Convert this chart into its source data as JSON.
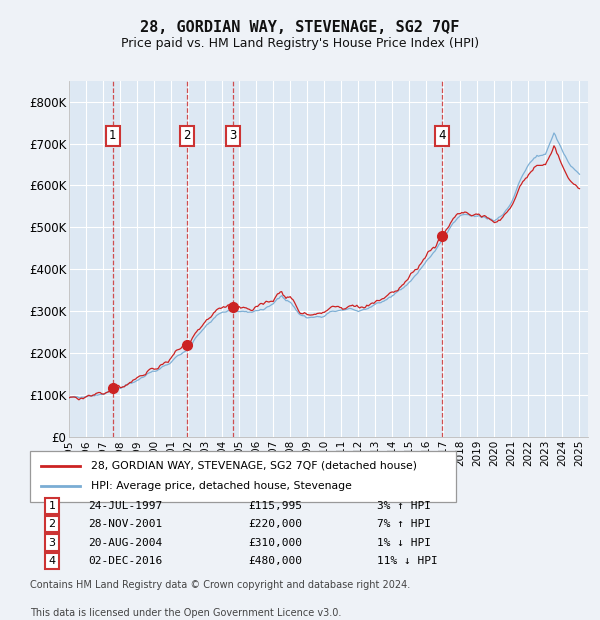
{
  "title": "28, GORDIAN WAY, STEVENAGE, SG2 7QF",
  "subtitle": "Price paid vs. HM Land Registry's House Price Index (HPI)",
  "legend_line1": "28, GORDIAN WAY, STEVENAGE, SG2 7QF (detached house)",
  "legend_line2": "HPI: Average price, detached house, Stevenage",
  "footer_line1": "Contains HM Land Registry data © Crown copyright and database right 2024.",
  "footer_line2": "This data is licensed under the Open Government Licence v3.0.",
  "transactions": [
    {
      "label": "1",
      "date": "24-JUL-1997",
      "price_str": "£115,995",
      "year": 1997.56,
      "price": 115995,
      "pct_str": "3% ↑ HPI"
    },
    {
      "label": "2",
      "date": "28-NOV-2001",
      "price_str": "£220,000",
      "year": 2001.91,
      "price": 220000,
      "pct_str": "7% ↑ HPI"
    },
    {
      "label": "3",
      "date": "20-AUG-2004",
      "price_str": "£310,000",
      "year": 2004.63,
      "price": 310000,
      "pct_str": "1% ↓ HPI"
    },
    {
      "label": "4",
      "date": "02-DEC-2016",
      "price_str": "£480,000",
      "year": 2016.92,
      "price": 480000,
      "pct_str": "11% ↓ HPI"
    }
  ],
  "hpi_color": "#7aadd4",
  "price_color": "#cc2222",
  "vline_color": "#cc3333",
  "plot_bg": "#dde8f3",
  "fig_bg": "#eef2f7",
  "grid_color": "#ffffff",
  "ylim": [
    0,
    850000
  ],
  "xlim_start": 1995.0,
  "xlim_end": 2025.5,
  "yticks": [
    0,
    100000,
    200000,
    300000,
    400000,
    500000,
    600000,
    700000,
    800000
  ],
  "ytick_labels": [
    "£0",
    "£100K",
    "£200K",
    "£300K",
    "£400K",
    "£500K",
    "£600K",
    "£700K",
    "£800K"
  ],
  "xtick_years": [
    1995,
    1996,
    1997,
    1998,
    1999,
    2000,
    2001,
    2002,
    2003,
    2004,
    2005,
    2006,
    2007,
    2008,
    2009,
    2010,
    2011,
    2012,
    2013,
    2014,
    2015,
    2016,
    2017,
    2018,
    2019,
    2020,
    2021,
    2022,
    2023,
    2024,
    2025
  ],
  "hpi_anchor_t": [
    1995.0,
    1995.5,
    1996.0,
    1996.5,
    1997.0,
    1997.5,
    1998.0,
    1998.5,
    1999.0,
    1999.5,
    2000.0,
    2000.5,
    2001.0,
    2001.5,
    2002.0,
    2002.5,
    2003.0,
    2003.5,
    2004.0,
    2004.5,
    2005.0,
    2005.5,
    2006.0,
    2006.5,
    2007.0,
    2007.5,
    2008.0,
    2008.5,
    2009.0,
    2009.5,
    2010.0,
    2010.5,
    2011.0,
    2011.5,
    2012.0,
    2012.5,
    2013.0,
    2013.5,
    2014.0,
    2014.5,
    2015.0,
    2015.5,
    2016.0,
    2016.5,
    2017.0,
    2017.5,
    2018.0,
    2018.5,
    2019.0,
    2019.5,
    2020.0,
    2020.5,
    2021.0,
    2021.5,
    2022.0,
    2022.5,
    2023.0,
    2023.5,
    2024.0,
    2024.5,
    2025.0
  ],
  "hpi_anchor_v": [
    92000,
    94000,
    97000,
    100000,
    104000,
    111000,
    118000,
    126000,
    136000,
    146000,
    155000,
    167000,
    180000,
    196000,
    212000,
    238000,
    260000,
    280000,
    294000,
    302000,
    297000,
    295000,
    300000,
    308000,
    320000,
    338000,
    322000,
    294000,
    284000,
    287000,
    293000,
    301000,
    307000,
    304000,
    301000,
    307000,
    314000,
    323000,
    336000,
    352000,
    370000,
    392000,
    420000,
    444000,
    472000,
    504000,
    522000,
    530000,
    528000,
    523000,
    519000,
    530000,
    560000,
    612000,
    650000,
    668000,
    674000,
    722000,
    682000,
    646000,
    628000
  ]
}
